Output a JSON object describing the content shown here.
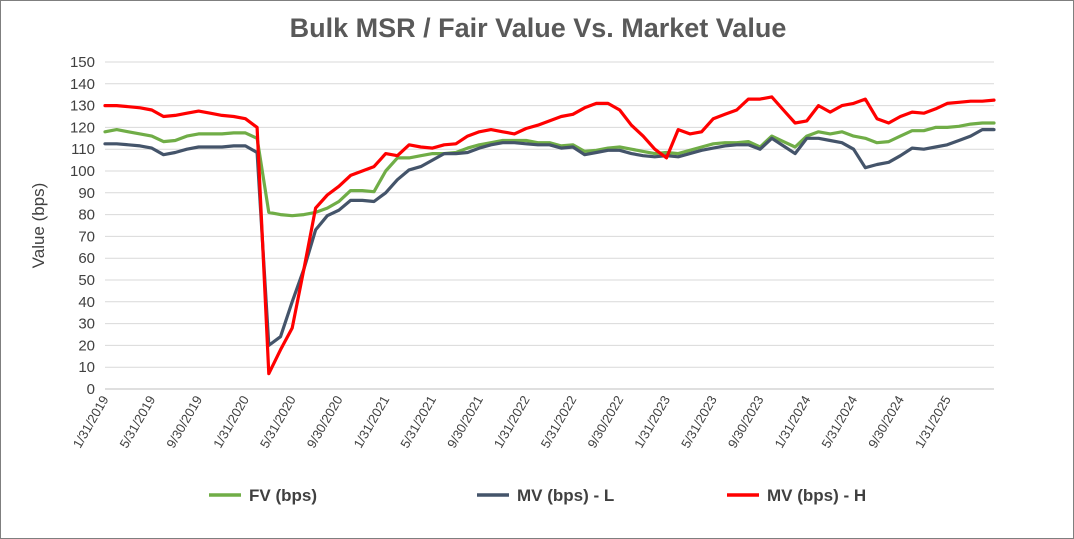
{
  "chart_data": {
    "type": "line",
    "title": "Bulk MSR / Fair Value Vs. Market Value",
    "xlabel": "",
    "ylabel": "Value (bps)",
    "ylim": [
      0,
      150
    ],
    "yticks": [
      0,
      10,
      20,
      30,
      40,
      50,
      60,
      70,
      80,
      90,
      100,
      110,
      120,
      130,
      140,
      150
    ],
    "grid": "horizontal",
    "legend_position": "bottom",
    "x_tick_labels": [
      "1/31/2019",
      "5/31/2019",
      "9/30/2019",
      "1/31/2020",
      "5/31/2020",
      "9/30/2020",
      "1/31/2021",
      "5/31/2021",
      "9/30/2021",
      "1/31/2022",
      "5/31/2022",
      "9/30/2022",
      "1/31/2023",
      "5/31/2023",
      "9/30/2023",
      "1/31/2024",
      "5/31/2024",
      "9/30/2024",
      "1/31/2025"
    ],
    "x_tick_indices": [
      0,
      4,
      8,
      12,
      16,
      20,
      24,
      28,
      32,
      36,
      40,
      44,
      48,
      52,
      56,
      60,
      64,
      68,
      72
    ],
    "x_count": 77,
    "series": [
      {
        "name": "FV (bps)",
        "color": "#70ad47",
        "values": [
          118,
          119,
          118,
          117,
          116,
          113.5,
          114,
          116,
          117,
          117,
          117,
          117.5,
          117.5,
          115,
          81,
          80,
          79.5,
          80,
          81,
          83,
          86,
          91,
          91,
          90.5,
          100,
          106,
          106,
          107,
          108,
          108,
          108.5,
          110.5,
          112,
          113,
          114,
          114,
          114,
          113,
          113,
          111.5,
          112,
          109,
          109.5,
          110.5,
          111,
          110,
          109,
          108,
          108.5,
          108,
          109.5,
          111,
          112.5,
          113,
          113,
          113.5,
          111,
          116,
          113.5,
          111,
          116,
          118,
          117,
          118,
          116,
          115,
          113,
          113.5,
          116,
          118.5,
          118.5,
          120,
          120,
          120.5,
          121.5,
          122,
          122
        ]
      },
      {
        "name": "MV (bps) - L",
        "color": "#44546a",
        "values": [
          112.5,
          112.5,
          112,
          111.5,
          110.5,
          107.5,
          108.5,
          110,
          111,
          111,
          111,
          111.5,
          111.5,
          108.5,
          20,
          24,
          40,
          55,
          73,
          79.5,
          82,
          86.5,
          86.5,
          86,
          90,
          96,
          100.5,
          102,
          105,
          108,
          108,
          108.5,
          110.5,
          112,
          113,
          113,
          112.5,
          112,
          112,
          110.5,
          111,
          107.5,
          108.5,
          109.5,
          109.5,
          108,
          107,
          106.5,
          107,
          106.5,
          108,
          109.5,
          110.5,
          111.5,
          112,
          112,
          110,
          115,
          111.5,
          108,
          115,
          115,
          114,
          113,
          110,
          101.5,
          103,
          104,
          107,
          110.5,
          110,
          111,
          112,
          114,
          116,
          119,
          119
        ]
      },
      {
        "name": "MV (bps) - H",
        "color": "#ff0000",
        "values": [
          130,
          130,
          129.5,
          129,
          128,
          125,
          125.5,
          126.5,
          127.5,
          126.5,
          125.5,
          125,
          124,
          120,
          7,
          18,
          28,
          55,
          83,
          89,
          93,
          98,
          100,
          102,
          108,
          107,
          112,
          111,
          110.5,
          112,
          112.5,
          116,
          118,
          119,
          118,
          117,
          119.5,
          121,
          123,
          125,
          126,
          129,
          131,
          131,
          128,
          121,
          116,
          110,
          106,
          119,
          117,
          118,
          124,
          126,
          128,
          133,
          133,
          134,
          128,
          122,
          123,
          130,
          127,
          130,
          131,
          133,
          124,
          122,
          125,
          127,
          126.5,
          128.5,
          131,
          131.5,
          132,
          132,
          132.5
        ]
      }
    ]
  }
}
